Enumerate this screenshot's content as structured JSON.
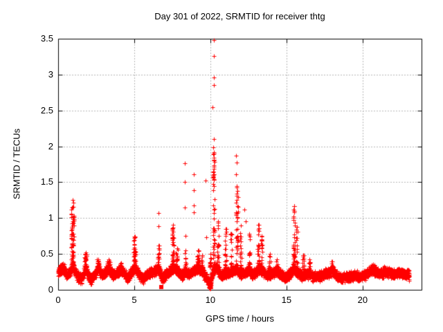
{
  "chart_data": {
    "type": "scatter",
    "title": "Day 301 of 2022, SRMTID for receiver thtg",
    "xlabel": "GPS time / hours",
    "ylabel": "SRMTID / TECUs",
    "xlim": [
      0,
      23.87
    ],
    "ylim": [
      0,
      3.5
    ],
    "xticks": [
      0,
      5,
      10,
      15,
      20
    ],
    "xtick_labels": [
      "0",
      "5",
      "10",
      "15",
      "20"
    ],
    "yticks": [
      0,
      0.5,
      1,
      1.5,
      2,
      2.5,
      3,
      3.5
    ],
    "ytick_labels": [
      "0",
      "0.5",
      "1",
      "1.5",
      "2",
      "2.5",
      "3",
      "3.5"
    ],
    "grid": true,
    "legend": "none",
    "marker": "plus",
    "marker_color": "#ff0000",
    "grid_color": "#b4b4b4",
    "border_color": "#000000",
    "outliers": [
      [
        6.58,
        1.07
      ],
      [
        6.61,
        0.89
      ],
      [
        8.33,
        1.76
      ],
      [
        8.3,
        1.5
      ],
      [
        8.33,
        1.15
      ],
      [
        8.36,
        0.75
      ],
      [
        8.9,
        1.61
      ],
      [
        8.9,
        1.39
      ],
      [
        8.9,
        1.18
      ],
      [
        8.92,
        1.08
      ],
      [
        9.7,
        1.52
      ],
      [
        9.72,
        0.73
      ],
      [
        10.22,
        3.48
      ],
      [
        10.22,
        3.26
      ],
      [
        10.25,
        2.96
      ],
      [
        10.22,
        2.85
      ],
      [
        10.15,
        2.55
      ],
      [
        10.23,
        2.1
      ],
      [
        10.2,
        1.99
      ],
      [
        10.24,
        1.92
      ],
      [
        11.7,
        1.87
      ],
      [
        11.72,
        1.77
      ],
      [
        11.68,
        1.61
      ],
      [
        11.73,
        1.34
      ],
      [
        11.7,
        1.08
      ],
      [
        12.25,
        1.12
      ],
      [
        12.3,
        0.95
      ],
      [
        15.5,
        1.17
      ],
      [
        15.52,
        1.1
      ]
    ],
    "square_points": [
      [
        6.77,
        0.04
      ]
    ],
    "spikes": [
      {
        "x": 0.95,
        "peak": 1.25,
        "width": 0.2,
        "count": 70
      },
      {
        "x": 1.8,
        "peak": 0.52,
        "width": 0.18,
        "count": 28
      },
      {
        "x": 2.65,
        "peak": 0.42,
        "width": 0.22,
        "count": 22
      },
      {
        "x": 3.3,
        "peak": 0.42,
        "width": 0.22,
        "count": 22
      },
      {
        "x": 4.15,
        "peak": 0.38,
        "width": 0.18,
        "count": 18
      },
      {
        "x": 5.02,
        "peak": 0.74,
        "width": 0.13,
        "count": 38
      },
      {
        "x": 6.6,
        "peak": 0.62,
        "width": 0.1,
        "count": 20
      },
      {
        "x": 7.55,
        "peak": 0.91,
        "width": 0.13,
        "count": 45
      },
      {
        "x": 7.8,
        "peak": 0.58,
        "width": 0.1,
        "count": 14
      },
      {
        "x": 8.35,
        "peak": 0.55,
        "width": 0.1,
        "count": 14
      },
      {
        "x": 9.2,
        "peak": 0.55,
        "width": 0.14,
        "count": 20
      },
      {
        "x": 9.45,
        "peak": 0.48,
        "width": 0.1,
        "count": 12
      },
      {
        "x": 9.97,
        "peak": 0.12,
        "width": 0.08,
        "count": 22,
        "base": 0.02
      },
      {
        "x": 10.0,
        "peak": 0.5,
        "width": 0.08,
        "count": 12
      },
      {
        "x": 10.22,
        "peak": 1.9,
        "width": 0.11,
        "count": 60
      },
      {
        "x": 10.5,
        "peak": 0.95,
        "width": 0.1,
        "count": 18
      },
      {
        "x": 11.0,
        "peak": 0.85,
        "width": 0.12,
        "count": 22
      },
      {
        "x": 11.35,
        "peak": 0.78,
        "width": 0.1,
        "count": 16
      },
      {
        "x": 11.75,
        "peak": 1.45,
        "width": 0.13,
        "count": 40
      },
      {
        "x": 12.0,
        "peak": 0.9,
        "width": 0.1,
        "count": 18
      },
      {
        "x": 12.55,
        "peak": 0.78,
        "width": 0.12,
        "count": 20
      },
      {
        "x": 13.15,
        "peak": 0.91,
        "width": 0.12,
        "count": 32
      },
      {
        "x": 13.38,
        "peak": 0.75,
        "width": 0.1,
        "count": 18
      },
      {
        "x": 13.9,
        "peak": 0.5,
        "width": 0.12,
        "count": 14
      },
      {
        "x": 14.35,
        "peak": 0.42,
        "width": 0.14,
        "count": 12
      },
      {
        "x": 15.5,
        "peak": 1.17,
        "width": 0.12,
        "count": 38
      },
      {
        "x": 15.68,
        "peak": 0.88,
        "width": 0.08,
        "count": 14
      },
      {
        "x": 16.1,
        "peak": 0.48,
        "width": 0.12,
        "count": 14
      },
      {
        "x": 16.5,
        "peak": 0.42,
        "width": 0.12,
        "count": 10
      },
      {
        "x": 18.0,
        "peak": 0.4,
        "width": 0.15,
        "count": 14
      },
      {
        "x": 20.7,
        "peak": 0.36,
        "width": 0.2,
        "count": 12
      },
      {
        "x": 21.4,
        "peak": 0.33,
        "width": 0.15,
        "count": 8
      }
    ],
    "baseline_nodes": [
      [
        0,
        0.24
      ],
      [
        0.15,
        0.28
      ],
      [
        0.35,
        0.32
      ],
      [
        0.55,
        0.2
      ],
      [
        0.75,
        0.24
      ],
      [
        0.95,
        0.32
      ],
      [
        1.15,
        0.25
      ],
      [
        1.35,
        0.16
      ],
      [
        1.55,
        0.15
      ],
      [
        1.8,
        0.3
      ],
      [
        2.0,
        0.2
      ],
      [
        2.15,
        0.15
      ],
      [
        2.4,
        0.22
      ],
      [
        2.65,
        0.3
      ],
      [
        2.9,
        0.2
      ],
      [
        3.15,
        0.26
      ],
      [
        3.35,
        0.3
      ],
      [
        3.6,
        0.2
      ],
      [
        3.85,
        0.24
      ],
      [
        4.1,
        0.28
      ],
      [
        4.35,
        0.22
      ],
      [
        4.6,
        0.16
      ],
      [
        4.85,
        0.26
      ],
      [
        5.05,
        0.3
      ],
      [
        5.3,
        0.22
      ],
      [
        5.55,
        0.16
      ],
      [
        5.8,
        0.2
      ],
      [
        6.05,
        0.24
      ],
      [
        6.3,
        0.26
      ],
      [
        6.6,
        0.28
      ],
      [
        6.85,
        0.16
      ],
      [
        7.1,
        0.22
      ],
      [
        7.35,
        0.28
      ],
      [
        7.6,
        0.3
      ],
      [
        7.85,
        0.26
      ],
      [
        8.1,
        0.2
      ],
      [
        8.35,
        0.26
      ],
      [
        8.6,
        0.22
      ],
      [
        8.85,
        0.26
      ],
      [
        9.1,
        0.3
      ],
      [
        9.35,
        0.28
      ],
      [
        9.6,
        0.22
      ],
      [
        9.85,
        0.12
      ],
      [
        10.0,
        0.1
      ],
      [
        10.2,
        0.28
      ],
      [
        10.45,
        0.3
      ],
      [
        10.7,
        0.2
      ],
      [
        10.95,
        0.24
      ],
      [
        11.2,
        0.24
      ],
      [
        11.45,
        0.26
      ],
      [
        11.7,
        0.3
      ],
      [
        11.95,
        0.22
      ],
      [
        12.2,
        0.24
      ],
      [
        12.45,
        0.26
      ],
      [
        12.7,
        0.22
      ],
      [
        12.95,
        0.24
      ],
      [
        13.2,
        0.3
      ],
      [
        13.45,
        0.26
      ],
      [
        13.7,
        0.2
      ],
      [
        13.95,
        0.22
      ],
      [
        14.2,
        0.24
      ],
      [
        14.45,
        0.26
      ],
      [
        14.7,
        0.2
      ],
      [
        14.95,
        0.16
      ],
      [
        15.2,
        0.22
      ],
      [
        15.5,
        0.3
      ],
      [
        15.75,
        0.24
      ],
      [
        16.0,
        0.2
      ],
      [
        16.25,
        0.22
      ],
      [
        16.5,
        0.22
      ],
      [
        16.75,
        0.18
      ],
      [
        17.0,
        0.18
      ],
      [
        17.25,
        0.2
      ],
      [
        17.5,
        0.22
      ],
      [
        17.75,
        0.24
      ],
      [
        18.0,
        0.26
      ],
      [
        18.3,
        0.2
      ],
      [
        18.6,
        0.16
      ],
      [
        18.9,
        0.18
      ],
      [
        19.2,
        0.18
      ],
      [
        19.5,
        0.2
      ],
      [
        19.8,
        0.18
      ],
      [
        20.1,
        0.2
      ],
      [
        20.4,
        0.25
      ],
      [
        20.7,
        0.28
      ],
      [
        21.0,
        0.24
      ],
      [
        21.3,
        0.22
      ],
      [
        21.6,
        0.25
      ],
      [
        21.9,
        0.23
      ],
      [
        22.2,
        0.21
      ],
      [
        22.5,
        0.25
      ],
      [
        22.8,
        0.22
      ],
      [
        23.07,
        0.2
      ]
    ],
    "noise": {
      "seed": 3012022,
      "amplitude": 0.08,
      "dt": 0.009,
      "x_end": 23.07,
      "y_floor": 0.02
    }
  }
}
